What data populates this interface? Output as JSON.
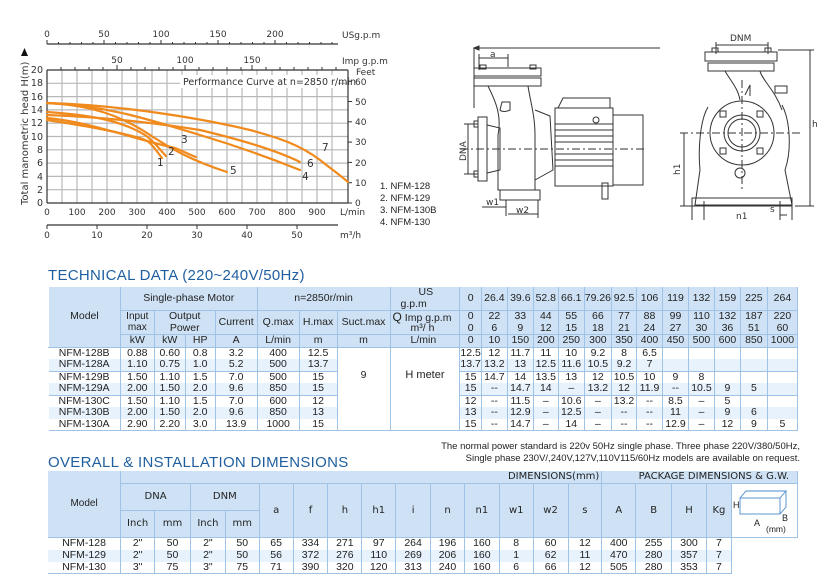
{
  "chart": {
    "top_axis_label": "USg.p.m",
    "top_axis_ticks": [
      "0",
      "50",
      "100",
      "150",
      "200"
    ],
    "imp_axis_label": "Imp g.p.m",
    "imp_axis_ticks": [
      "50",
      "100",
      "150"
    ],
    "right_axis_label": "Feet",
    "right_axis_ticks": [
      "0",
      "10",
      "20",
      "30",
      "40",
      "50",
      "60"
    ],
    "y_axis_label": "Total manometric head H(m)",
    "y_axis_ticks": [
      "0",
      "2",
      "4",
      "6",
      "8",
      "10",
      "12",
      "14",
      "16",
      "18",
      "20"
    ],
    "x_axis_label": "L/min",
    "x_axis_ticks": [
      "0",
      "100",
      "200",
      "300",
      "400",
      "500",
      "600",
      "700",
      "800",
      "900"
    ],
    "bottom_axis_label": "m³/h",
    "bottom_axis_ticks": [
      "0",
      "10",
      "20",
      "30",
      "40",
      "50"
    ],
    "annotation": "Performance Curve at n=2850 r/min",
    "curve_color": "#f08a1c",
    "curve_labels": [
      "1",
      "2",
      "3",
      "4",
      "5",
      "6",
      "7"
    ],
    "legend": [
      "1. NFM-128",
      "2. NFM-129",
      "3. NFM-130B",
      "4. NFM-130"
    ]
  },
  "chart_data": {
    "type": "line",
    "title": "Performance Curve at n=2850 r/min",
    "xlabel": "L/min",
    "ylabel": "Total manometric head H(m)",
    "xlim": [
      0,
      1000
    ],
    "ylim": [
      0,
      20
    ],
    "grid": true,
    "series": [
      {
        "name": "1",
        "x": [
          0,
          100,
          200,
          300,
          350,
          400
        ],
        "y": [
          12.5,
          12,
          11.5,
          10,
          9,
          6.5
        ]
      },
      {
        "name": "2",
        "x": [
          0,
          100,
          200,
          300,
          400
        ],
        "y": [
          13.7,
          13.2,
          12.5,
          10.5,
          7
        ]
      },
      {
        "name": "3",
        "x": [
          0,
          100,
          200,
          300,
          400,
          500
        ],
        "y": [
          12,
          11.5,
          10.6,
          9.5,
          8.5,
          8
        ]
      },
      {
        "name": "4",
        "x": [
          0,
          150,
          250,
          350,
          450,
          600,
          700,
          850
        ],
        "y": [
          15,
          14.7,
          14,
          12,
          10.5,
          9,
          7,
          5
        ]
      },
      {
        "name": "5",
        "x": [
          0,
          150,
          250,
          350,
          450,
          600
        ],
        "y": [
          15,
          14.7,
          13,
          11.5,
          9,
          5
        ]
      },
      {
        "name": "6",
        "x": [
          0,
          150,
          300,
          450,
          600,
          850
        ],
        "y": [
          13,
          12.9,
          12.5,
          11,
          9,
          6
        ]
      },
      {
        "name": "7",
        "x": [
          0,
          150,
          250,
          400,
          500,
          600,
          850,
          1000
        ],
        "y": [
          15,
          14.7,
          14,
          12.9,
          12.5,
          12,
          9,
          5
        ]
      }
    ]
  },
  "legend_list": [
    "1. NFM-128",
    "2. NFM-129",
    "3. NFM-130B",
    "4. NFM-130"
  ],
  "drawings": {
    "side": {
      "labels": [
        "a",
        "DNA",
        "w1",
        "w2"
      ]
    },
    "front": {
      "labels": [
        "DNM",
        "h",
        "h1",
        "n1",
        "n",
        "s"
      ]
    }
  },
  "technical": {
    "title": "TECHNICAL DATA (220~240V/50Hz)",
    "headers": {
      "model": "Model",
      "single_phase_motor": "Single-phase Motor",
      "speed": "n=2850r/min",
      "input_max": "Input max",
      "output_power": "Output Power",
      "current": "Current",
      "qmax": "Q.max",
      "hmax": "H.max",
      "suctmax": "Suct.max",
      "q": "Q",
      "usgpm": "US g.p.m",
      "impgpm": "Imp g.p.m",
      "m3h": "m³/ h",
      "lmin": "L/min",
      "unit_kw": "kW",
      "unit_kw2": "kW",
      "unit_hp": "HP",
      "unit_a": "A",
      "unit_lmin": "L/min",
      "unit_m": "m",
      "unit_m2": "m",
      "h_meter": "H meter"
    },
    "flow_usgpm": [
      "0",
      "26.4",
      "39.6",
      "52.8",
      "66.1",
      "79.26",
      "92.5",
      "106",
      "119",
      "132",
      "159",
      "225",
      "264"
    ],
    "flow_impgpm": [
      "0",
      "22",
      "33",
      "44",
      "55",
      "66",
      "77",
      "88",
      "99",
      "110",
      "132",
      "187",
      "220"
    ],
    "flow_m3h": [
      "0",
      "6",
      "9",
      "12",
      "15",
      "18",
      "21",
      "24",
      "27",
      "30",
      "36",
      "51",
      "60"
    ],
    "flow_lmin": [
      "0",
      "10",
      "150",
      "200",
      "250",
      "300",
      "350",
      "400",
      "450",
      "500",
      "600",
      "850",
      "1000"
    ],
    "suction": "9",
    "rows": [
      {
        "model": "NFM-128B",
        "input": "0.88",
        "kw": "0.60",
        "hp": "0.8",
        "a": "3.2",
        "qmax": "400",
        "hmax": "12.5",
        "heads": [
          "12.5",
          "12",
          "11.7",
          "11",
          "10",
          "9.2",
          "8",
          "6.5",
          "",
          "",
          "",
          "",
          ""
        ]
      },
      {
        "model": "NFM-128A",
        "input": "1.10",
        "kw": "0.75",
        "hp": "1.0",
        "a": "5.2",
        "qmax": "500",
        "hmax": "13.7",
        "heads": [
          "13.7",
          "13.2",
          "13",
          "12.5",
          "11.6",
          "10.5",
          "9.2",
          "7",
          "",
          "",
          "",
          "",
          ""
        ]
      },
      {
        "model": "NFM-129B",
        "input": "1.50",
        "kw": "1.10",
        "hp": "1.5",
        "a": "7.0",
        "qmax": "500",
        "hmax": "15",
        "heads": [
          "15",
          "14.7",
          "14",
          "13.5",
          "13",
          "12",
          "10.5",
          "10",
          "9",
          "8",
          "",
          "",
          ""
        ]
      },
      {
        "model": "NFM-129A",
        "input": "2.00",
        "kw": "1.50",
        "hp": "2.0",
        "a": "9.6",
        "qmax": "850",
        "hmax": "15",
        "heads": [
          "15",
          "--",
          "14.7",
          "14",
          "–",
          "13.2",
          "12",
          "11.9",
          "--",
          "10.5",
          "9",
          "5",
          ""
        ]
      },
      {
        "model": "NFM-130C",
        "input": "1.50",
        "kw": "1.10",
        "hp": "1.5",
        "a": "7.0",
        "qmax": "600",
        "hmax": "12",
        "heads": [
          "12",
          "--",
          "11.5",
          "–",
          "10.6",
          "–",
          "13.2",
          "--",
          "8.5",
          "–",
          "5",
          "",
          ""
        ]
      },
      {
        "model": "NFM-130B",
        "input": "2.00",
        "kw": "1.50",
        "hp": "2.0",
        "a": "9.6",
        "qmax": "850",
        "hmax": "13",
        "heads": [
          "13",
          "--",
          "12.9",
          "–",
          "12.5",
          "–",
          "--",
          "--",
          "11",
          "–",
          "9",
          "6",
          ""
        ]
      },
      {
        "model": "NFM-130A",
        "input": "2.90",
        "kw": "2.20",
        "hp": "3.0",
        "a": "13.9",
        "qmax": "1000",
        "hmax": "15",
        "heads": [
          "15",
          "--",
          "14.7",
          "–",
          "14",
          "–",
          "--",
          "--",
          "12.9",
          "–",
          "12",
          "9",
          "5"
        ]
      }
    ],
    "note_line1": "The normal power standard is 220v 50Hz single phase. Three phase 220V/380/50Hz,",
    "note_line2": "Single phase 230V/,240V,127V,110V115/60Hz models are available on request."
  },
  "dimensions": {
    "title": "OVERALL & INSTALLATION DIMENSIONS",
    "headers": {
      "model": "Model",
      "dimensions_mm": "DIMENSIONS(mm)",
      "package": "PACKAGE DIMENSIONS & G.W.",
      "dna": "DNA",
      "dnm": "DNM",
      "inch": "Inch",
      "mm": "mm",
      "inch2": "Inch",
      "mm2": "mm",
      "a": "a",
      "f": "f",
      "h": "h",
      "h1": "h1",
      "i": "i",
      "n": "n",
      "n1": "n1",
      "w1": "w1",
      "w2": "w2",
      "s": "s",
      "pA": "A",
      "pB": "B",
      "pH": "H",
      "kg": "Kg"
    },
    "box_labels": {
      "h": "H",
      "a": "A",
      "b": "B",
      "unit": "(mm)"
    },
    "rows": [
      {
        "model": "NFM-128",
        "dna_in": "2\"",
        "dna_mm": "50",
        "dnm_in": "2\"",
        "dnm_mm": "50",
        "a": "65",
        "f": "334",
        "h": "271",
        "h1": "97",
        "i": "264",
        "n": "196",
        "n1": "160",
        "w1": "8",
        "w2": "60",
        "s": "12",
        "pA": "400",
        "pB": "255",
        "pH": "300",
        "kg": "7"
      },
      {
        "model": "NFM-129",
        "dna_in": "2\"",
        "dna_mm": "50",
        "dnm_in": "2\"",
        "dnm_mm": "50",
        "a": "56",
        "f": "372",
        "h": "276",
        "h1": "110",
        "i": "269",
        "n": "206",
        "n1": "160",
        "w1": "1",
        "w2": "62",
        "s": "11",
        "pA": "470",
        "pB": "280",
        "pH": "357",
        "kg": "7"
      },
      {
        "model": "NFM-130",
        "dna_in": "3\"",
        "dna_mm": "75",
        "dnm_in": "3\"",
        "dnm_mm": "75",
        "a": "71",
        "f": "390",
        "h": "320",
        "h1": "120",
        "i": "313",
        "n": "240",
        "n1": "160",
        "w1": "6",
        "w2": "66",
        "s": "12",
        "pA": "505",
        "pB": "280",
        "pH": "353",
        "kg": "7"
      }
    ]
  }
}
